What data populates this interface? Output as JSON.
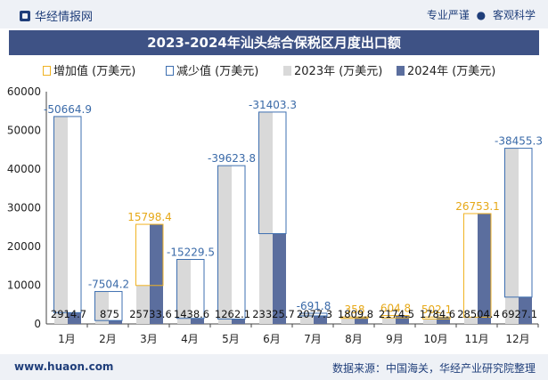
{
  "header": {
    "brand": "华经情报网",
    "tagline_left": "专业严谨",
    "tagline_dot": "●",
    "tagline_right": "客观科学"
  },
  "chart_data": {
    "type": "bar",
    "title": "2023-2024年汕头综合保税区月度出口额",
    "categories": [
      "1月",
      "2月",
      "3月",
      "4月",
      "5月",
      "6月",
      "7月",
      "8月",
      "9月",
      "10月",
      "11月",
      "12月"
    ],
    "series": [
      {
        "name": "2023年 (万美元)",
        "values": [
          53579.6,
          8379.2,
          9935.2,
          16668.1,
          40885.9,
          54729.0,
          2769.1,
          1451.8,
          1569.7,
          1282.5,
          1751.3,
          45382.4
        ]
      },
      {
        "name": "2024年 (万美元)",
        "values": [
          2914.7,
          875,
          25733.6,
          1438.6,
          1262.1,
          23325.7,
          2077.3,
          1809.8,
          2174.5,
          1784.6,
          28504.4,
          6927.1
        ]
      }
    ],
    "changes": [
      {
        "type": "decrease",
        "value": "-50664.9"
      },
      {
        "type": "decrease",
        "value": "-7504.2"
      },
      {
        "type": "increase",
        "value": "15798.4"
      },
      {
        "type": "decrease",
        "value": "-15229.5"
      },
      {
        "type": "decrease",
        "value": "-39623.8"
      },
      {
        "type": "decrease",
        "value": "-31403.3"
      },
      {
        "type": "decrease",
        "value": "-691.8"
      },
      {
        "type": "increase",
        "value": "358"
      },
      {
        "type": "increase",
        "value": "604.8"
      },
      {
        "type": "increase",
        "value": "502.1"
      },
      {
        "type": "increase",
        "value": "26753.1"
      },
      {
        "type": "decrease",
        "value": "-38455.3"
      }
    ],
    "value_labels_2024": [
      "2914.7",
      "875",
      "25733.6",
      "1438.6",
      "1262.1",
      "23325.7",
      "2077.3",
      "1809.8",
      "2174.5",
      "1784.6",
      "28504.4",
      "6927.1"
    ],
    "legend": [
      "增加值 (万美元)",
      "减少值 (万美元)",
      "2023年 (万美元)",
      "2024年 (万美元)"
    ],
    "ylim": [
      0,
      60000
    ],
    "yticks": [
      0,
      10000,
      20000,
      30000,
      40000,
      50000,
      60000
    ],
    "colors": {
      "increase": "#f0b323",
      "decrease": "#3e6fb0",
      "y2023": "#d9d9d9",
      "y2024": "#5b6e9e",
      "increase_label": "#e6a817",
      "decrease_label": "#3a6aa8"
    }
  },
  "footer": {
    "website": "www.huaon.com",
    "source": "数据来源：中国海关，华经产业研究院整理"
  }
}
